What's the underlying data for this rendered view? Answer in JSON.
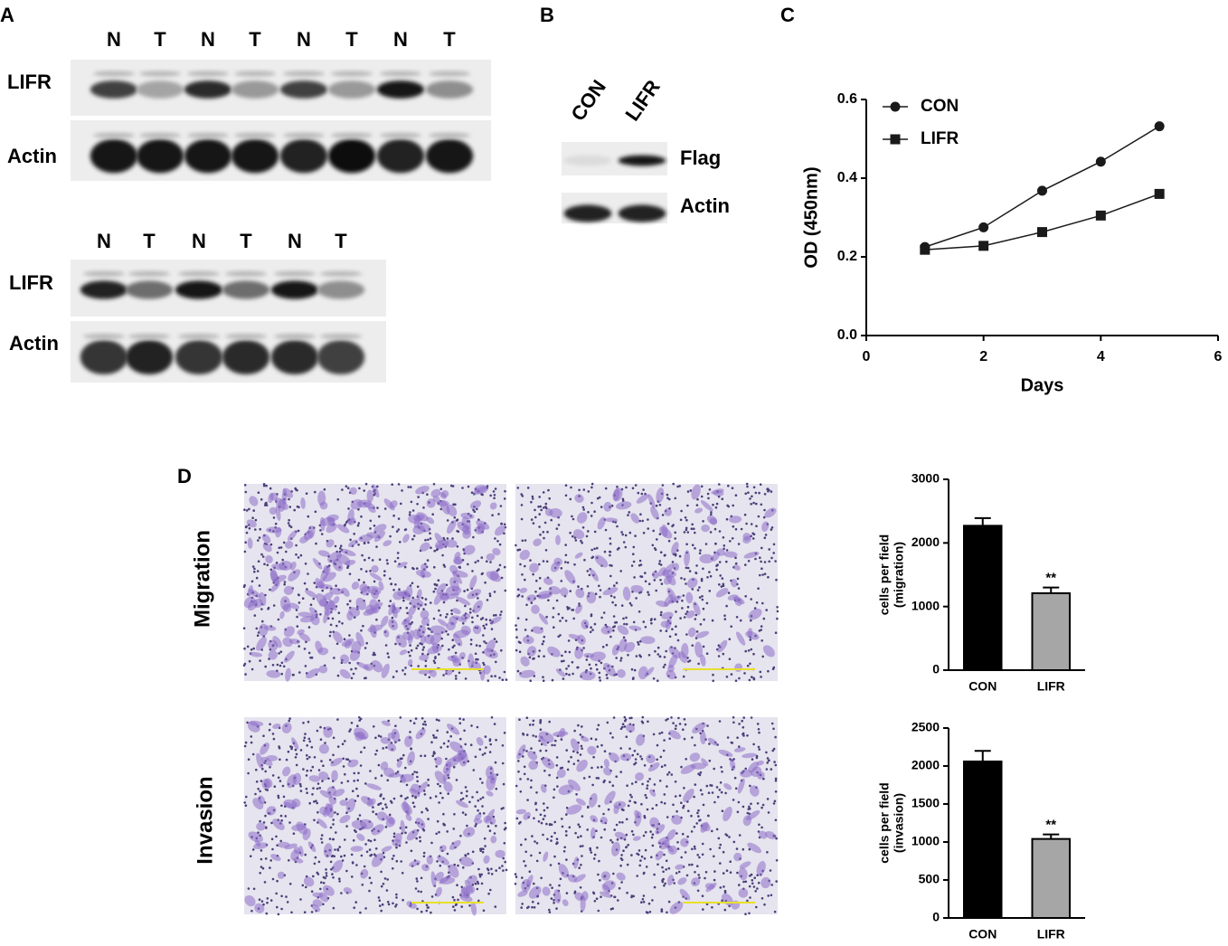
{
  "panels": {
    "a": "A",
    "b": "B",
    "c": "C",
    "d": "D"
  },
  "blot_a1": {
    "lanes": [
      "N",
      "T",
      "N",
      "T",
      "N",
      "T",
      "N",
      "T"
    ],
    "rows": [
      "LIFR",
      "Actin"
    ]
  },
  "blot_a2": {
    "lanes": [
      "N",
      "T",
      "N",
      "T",
      "N",
      "T"
    ],
    "rows": [
      "LIFR",
      "Actin"
    ]
  },
  "blot_b": {
    "lanes": [
      "CON",
      "LIFR"
    ],
    "rows": [
      "Flag",
      "Actin"
    ]
  },
  "images": {
    "rows": [
      "Migration",
      "Invasion"
    ]
  },
  "chart_data": [
    {
      "type": "line",
      "x": [
        1,
        2,
        3,
        4,
        5
      ],
      "series": [
        {
          "name": "CON",
          "color": "#1a1a1a",
          "marker": "circle",
          "values": [
            0.225,
            0.275,
            0.368,
            0.442,
            0.532
          ]
        },
        {
          "name": "LIFR",
          "color": "#1a1a1a",
          "marker": "square",
          "values": [
            0.218,
            0.228,
            0.263,
            0.305,
            0.36
          ]
        }
      ],
      "xlim": [
        0,
        6
      ],
      "xticks": [
        0,
        2,
        4,
        6
      ],
      "ylim": [
        0,
        0.6
      ],
      "yticks": [
        {
          "value": 0,
          "label": "0.0"
        },
        0.2,
        0.4,
        0.6
      ],
      "xlabel": "Days",
      "ylabel": "OD (450nm)",
      "legend": "top-left"
    },
    {
      "type": "bar",
      "categories": [
        "CON",
        "LIFR"
      ],
      "values": [
        2270,
        1210
      ],
      "errors": [
        120,
        90
      ],
      "colors": [
        "#000000",
        "#a6a6a6"
      ],
      "ylim": [
        0,
        3000
      ],
      "yticks": [
        0,
        1000,
        2000,
        3000
      ],
      "ylabel": [
        "cells per field",
        "(migration)"
      ],
      "annotations": [
        {
          "x": "LIFR",
          "text": "**"
        }
      ]
    },
    {
      "type": "bar",
      "categories": [
        "CON",
        "LIFR"
      ],
      "values": [
        2060,
        1040
      ],
      "errors": [
        140,
        60
      ],
      "colors": [
        "#000000",
        "#a6a6a6"
      ],
      "ylim": [
        0,
        2500
      ],
      "yticks": [
        0,
        500,
        1000,
        1500,
        2000,
        2500
      ],
      "ylabel": [
        "cells per field",
        "(invasion)"
      ],
      "annotations": [
        {
          "x": "LIFR",
          "text": "**"
        }
      ]
    }
  ]
}
